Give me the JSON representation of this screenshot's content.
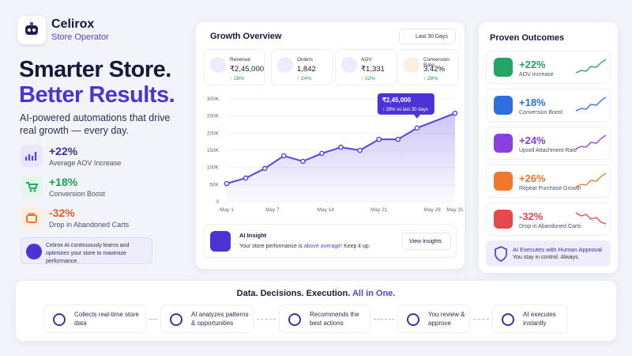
{
  "brand": {
    "name": "Celirox",
    "subtitle": "Store Operator"
  },
  "hero": {
    "title_line1": "Smarter Store.",
    "title_line2": "Better Results.",
    "description": "AI-powered automations that drive real growth — every day.",
    "stats": [
      {
        "value": "+22%",
        "label": "Average AOV Increase"
      },
      {
        "value": "+18%",
        "label": "Conversion Boost"
      },
      {
        "value": "-32%",
        "label": "Drop in Abandoned Carts"
      }
    ],
    "note": "Celirox AI continuously learns and optimizes your store to maximize performance."
  },
  "growth": {
    "title": "Growth Overview",
    "range": "Last 30 Days",
    "kpis": [
      {
        "label": "Revenue",
        "value": "₹2,45,000",
        "change": "↑ 28%"
      },
      {
        "label": "Orders",
        "value": "1,842",
        "change": "↑ 24%"
      },
      {
        "label": "AOV",
        "value": "₹1,331",
        "change": "↑ 22%"
      },
      {
        "label": "Conversion Rate",
        "value": "3.42%",
        "change": "↑ 28%"
      }
    ],
    "insight": {
      "title": "AI Insight",
      "text_before": "Your store performance is",
      "highlight": "above average!",
      "text_after": "Keep it up.",
      "button": "View Insights"
    }
  },
  "chart_data": {
    "type": "line",
    "x": [
      1,
      3.5,
      6,
      8.5,
      11,
      13.5,
      16,
      18.5,
      21,
      23.5,
      26,
      31
    ],
    "values": [
      53000,
      69000,
      97000,
      134000,
      118000,
      141000,
      159000,
      150000,
      182000,
      182000,
      215000,
      258000
    ],
    "color": "#5b3fe0",
    "xlim": [
      1,
      31
    ],
    "xticks": [
      {
        "value": 1,
        "label": "May 1"
      },
      {
        "value": 7,
        "label": "May 7"
      },
      {
        "value": 14,
        "label": "May 14"
      },
      {
        "value": 21,
        "label": "May 21"
      },
      {
        "value": 28,
        "label": "May 28"
      },
      {
        "value": 31,
        "label": "May 31"
      }
    ],
    "ylim": [
      0,
      300000
    ],
    "yticks": [
      0,
      {
        "value": 50000,
        "label": "50K"
      },
      {
        "value": 100000,
        "label": "100K"
      },
      {
        "value": 150000,
        "label": "150K"
      },
      {
        "value": 200000,
        "label": "200K"
      },
      {
        "value": 250000,
        "label": "250K"
      },
      {
        "value": 300000,
        "label": "300K"
      }
    ],
    "tooltip": {
      "value": "₹2,45,000",
      "label": "↑ 28% vs last 30 days"
    }
  },
  "outcomes": {
    "title": "Proven Outcomes",
    "items": [
      {
        "value": "+22%",
        "label": "AOV Increase"
      },
      {
        "value": "+18%",
        "label": "Conversion Boost"
      },
      {
        "value": "+24%",
        "label": "Upsell Attachment Rate"
      },
      {
        "value": "+26%",
        "label": "Repeat Purchase Growth"
      },
      {
        "value": "-32%",
        "label": "Drop in Abandoned Carts"
      }
    ],
    "footer_title": "AI Executes with Human Approval",
    "footer_text": "You stay in control. Always."
  },
  "flow": {
    "title": "Data. Decisions. Execution.",
    "highlight": "All in One.",
    "steps": [
      "Collects real-time store data",
      "AI analyzes patterns & opportunities",
      "Recommends the best actions",
      "You review & approve",
      "AI executes instantly"
    ]
  }
}
